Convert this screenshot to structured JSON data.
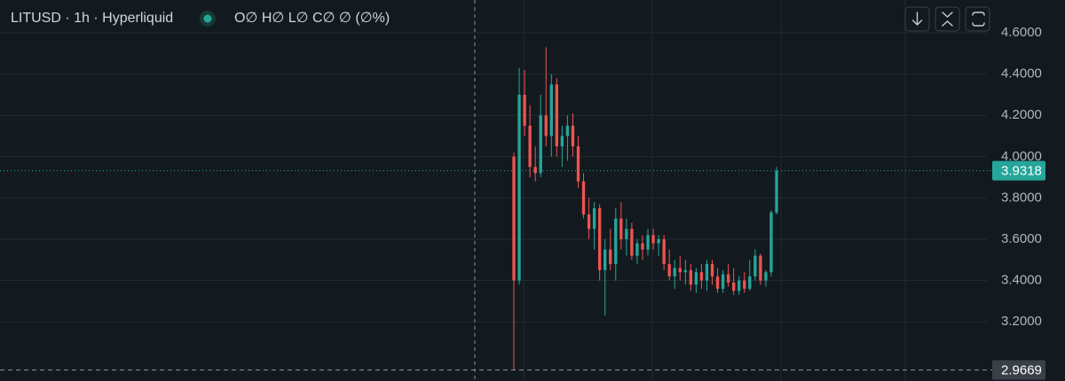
{
  "chart_data": {
    "type": "candlestick",
    "title": "LITUSD · 1h · Hyperliquid",
    "legend_text": "O∅ H∅ L∅ C∅ ∅ (∅%)",
    "up_color": "#26a69a",
    "down_color": "#ef5350",
    "ylim": [
      2.913,
      4.759
    ],
    "yticks": [
      {
        "value": 3.2,
        "label": "3.2000"
      },
      {
        "value": 3.4,
        "label": "3.4000"
      },
      {
        "value": 3.6,
        "label": "3.6000"
      },
      {
        "value": 3.8,
        "label": "3.8000"
      },
      {
        "value": 4.0,
        "label": "4.0000"
      },
      {
        "value": 4.2,
        "label": "4.2000"
      },
      {
        "value": 4.4,
        "label": "4.4000"
      },
      {
        "value": 4.6,
        "label": "4.6000"
      }
    ],
    "grid": true,
    "price_lines": [
      {
        "value": 3.9318,
        "color": "#26a69a"
      },
      {
        "value": 2.9669,
        "color": "#3a4048"
      }
    ],
    "open": [
      4.0,
      3.4,
      4.3,
      4.15,
      3.95,
      3.92,
      4.2,
      4.1,
      4.35,
      4.05,
      4.1,
      4.15,
      4.05,
      3.88,
      3.72,
      3.65,
      3.75,
      3.45,
      3.55,
      3.48,
      3.7,
      3.6,
      3.65,
      3.52,
      3.58,
      3.55,
      3.62,
      3.58,
      3.6,
      3.48,
      3.42,
      3.46,
      3.44,
      3.45,
      3.38,
      3.44,
      3.4,
      3.48,
      3.42,
      3.36,
      3.43,
      3.39,
      3.35,
      3.4,
      3.36,
      3.42,
      3.52,
      3.4,
      3.44,
      3.73
    ],
    "high": [
      4.02,
      4.43,
      4.42,
      4.25,
      4.05,
      4.3,
      4.53,
      4.4,
      4.38,
      4.15,
      4.2,
      4.21,
      4.1,
      3.92,
      3.8,
      3.78,
      3.77,
      3.6,
      3.65,
      3.75,
      3.78,
      3.7,
      3.68,
      3.6,
      3.62,
      3.65,
      3.65,
      3.62,
      3.62,
      3.55,
      3.5,
      3.52,
      3.5,
      3.48,
      3.46,
      3.48,
      3.5,
      3.5,
      3.46,
      3.45,
      3.48,
      3.46,
      3.42,
      3.44,
      3.5,
      3.55,
      3.53,
      3.45,
      3.74,
      3.95
    ],
    "low": [
      2.9669,
      3.38,
      4.1,
      3.9,
      3.88,
      3.9,
      4.05,
      4.0,
      4.0,
      3.95,
      3.98,
      4.0,
      3.85,
      3.7,
      3.6,
      3.55,
      3.4,
      3.23,
      3.45,
      3.4,
      3.55,
      3.52,
      3.5,
      3.48,
      3.5,
      3.52,
      3.55,
      3.52,
      3.45,
      3.4,
      3.36,
      3.4,
      3.38,
      3.35,
      3.34,
      3.36,
      3.35,
      3.38,
      3.34,
      3.34,
      3.37,
      3.33,
      3.33,
      3.34,
      3.35,
      3.4,
      3.38,
      3.37,
      3.42,
      3.72
    ],
    "close": [
      3.4,
      4.3,
      4.15,
      3.95,
      3.92,
      4.2,
      4.1,
      4.35,
      4.05,
      4.1,
      4.15,
      4.05,
      3.88,
      3.72,
      3.65,
      3.75,
      3.45,
      3.55,
      3.48,
      3.7,
      3.6,
      3.65,
      3.52,
      3.58,
      3.55,
      3.62,
      3.58,
      3.6,
      3.48,
      3.42,
      3.46,
      3.44,
      3.45,
      3.38,
      3.44,
      3.4,
      3.48,
      3.42,
      3.36,
      3.43,
      3.39,
      3.35,
      3.4,
      3.36,
      3.42,
      3.52,
      3.4,
      3.44,
      3.73,
      3.9318
    ]
  }
}
